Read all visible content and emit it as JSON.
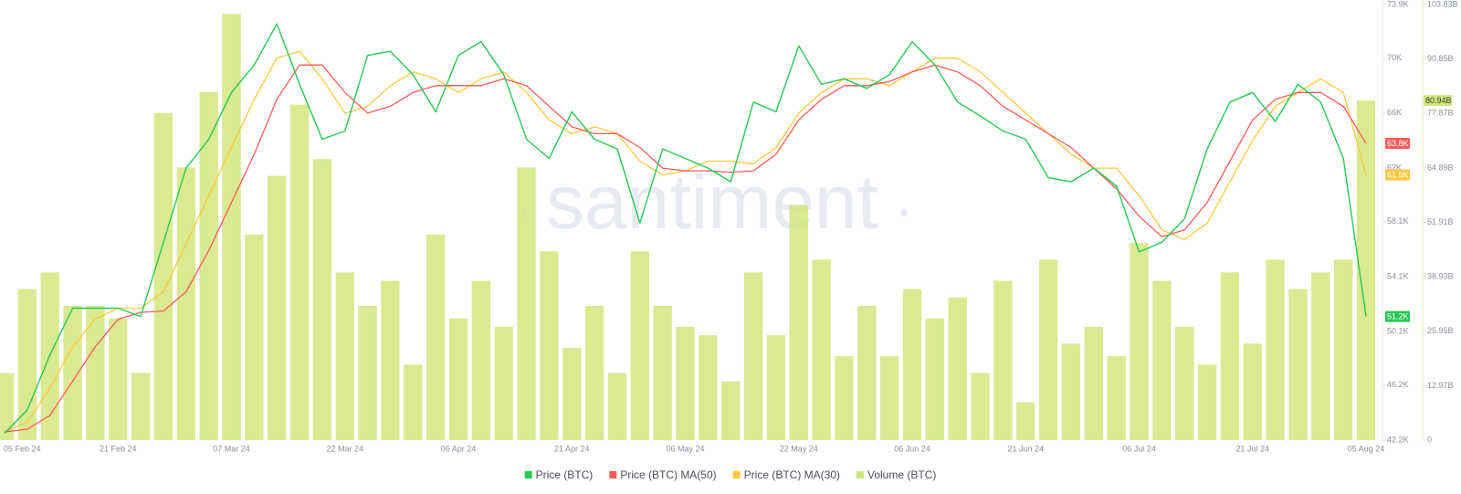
{
  "chart_data": {
    "type": "line",
    "watermark": "santiment",
    "categories": [
      "05 Feb 24",
      null,
      null,
      null,
      null,
      "21 Feb 24",
      null,
      null,
      null,
      null,
      "07 Mar 24",
      null,
      null,
      null,
      null,
      "22 Mar 24",
      null,
      null,
      null,
      null,
      "06 Apr 24",
      null,
      null,
      null,
      null,
      "21 Apr 24",
      null,
      null,
      null,
      null,
      "06 May 24",
      null,
      null,
      null,
      null,
      "22 May 24",
      null,
      null,
      null,
      null,
      "06 Jun 24",
      null,
      null,
      null,
      null,
      "21 Jun 24",
      null,
      null,
      null,
      null,
      "06 Jul 24",
      null,
      null,
      null,
      null,
      "21 Jul 24",
      null,
      null,
      null,
      null,
      "05 Aug 24"
    ],
    "series": [
      {
        "name": "Price (BTC)",
        "type": "line",
        "color": "#26c953",
        "last_label": "51.2K",
        "values": [
          42.7,
          44.4,
          48.4,
          51.8,
          51.8,
          51.8,
          51.2,
          56.6,
          62.0,
          64.1,
          67.5,
          69.5,
          72.5,
          68.1,
          64.1,
          64.7,
          70.2,
          70.5,
          68.8,
          66.1,
          70.2,
          71.2,
          68.8,
          64.1,
          62.7,
          66.1,
          64.1,
          63.4,
          58.0,
          63.4,
          62.7,
          62.0,
          61.0,
          66.8,
          66.1,
          70.9,
          68.1,
          68.5,
          67.8,
          68.8,
          71.2,
          69.5,
          66.8,
          65.8,
          64.7,
          64.1,
          61.3,
          61.0,
          62.0,
          60.7,
          55.9,
          56.6,
          58.3,
          63.4,
          66.8,
          67.5,
          65.4,
          68.1,
          66.8,
          62.7,
          51.2
        ]
      },
      {
        "name": "Price (BTC) MA(50)",
        "type": "line",
        "color": "#ff5b5b",
        "last_label": "63.8K",
        "values": [
          42.8,
          43,
          44,
          46.5,
          49,
          51,
          51.5,
          51.6,
          53,
          56,
          59.5,
          63,
          67,
          69.5,
          69.5,
          67.5,
          66,
          66.5,
          67.5,
          68,
          68,
          68,
          68.5,
          68,
          66.5,
          65,
          64.5,
          64.5,
          63.5,
          62,
          61.8,
          61.8,
          61.7,
          61.8,
          63,
          65.5,
          67,
          68,
          68,
          68.3,
          69,
          69.5,
          69,
          68,
          66.5,
          65.5,
          64.5,
          63.5,
          62,
          60.5,
          58.5,
          57,
          57.5,
          59.5,
          62.5,
          65.5,
          67,
          67.5,
          67.5,
          66.5,
          63.8
        ]
      },
      {
        "name": "Price (BTC) MA(30)",
        "type": "line",
        "color": "#ffc83d",
        "last_label": "61.5K",
        "values": [
          42.8,
          43.5,
          46,
          49,
          51,
          51.8,
          51.8,
          53,
          56.5,
          60,
          63.5,
          67,
          70,
          70.5,
          68.5,
          66,
          66.5,
          68,
          69,
          68.5,
          67.5,
          68.5,
          69,
          67.5,
          65.5,
          64.5,
          65,
          64.5,
          62.5,
          61.5,
          61.8,
          62.5,
          62.5,
          62.3,
          63.5,
          66,
          67.5,
          68.5,
          68.5,
          68,
          69,
          70,
          70,
          69,
          67.5,
          66,
          64.5,
          63,
          62,
          62,
          60,
          57.5,
          56.8,
          58,
          61,
          64,
          66.5,
          67.5,
          68.5,
          67.5,
          61.5
        ]
      },
      {
        "name": "Volume (BTC)",
        "type": "bar",
        "axis": "y2",
        "color": "#d2e67e",
        "last_label": "80.94B",
        "values": [
          16,
          36,
          40,
          32,
          32,
          29,
          16,
          78,
          65,
          83,
          101.6,
          49,
          63,
          80,
          67,
          40,
          32,
          38,
          18,
          49,
          29,
          38,
          27,
          65,
          45,
          22,
          32,
          16,
          45,
          32,
          27,
          25,
          14,
          40,
          25,
          56,
          43,
          20,
          32,
          20,
          36,
          29,
          34,
          16,
          38,
          9,
          43,
          23,
          27,
          20,
          47,
          38,
          27,
          18,
          40,
          23,
          43,
          36,
          40,
          43,
          80.94
        ]
      }
    ],
    "ylim": [
      42.2,
      73.9
    ],
    "yticks": [
      {
        "value": 42.2,
        "label": "42.2K"
      },
      {
        "value": 46.2,
        "label": "46.2K"
      },
      {
        "value": 50.1,
        "label": "50.1K"
      },
      {
        "value": 54.1,
        "label": "54.1K"
      },
      {
        "value": 58.1,
        "label": "58.1K"
      },
      {
        "value": 62,
        "label": "62K"
      },
      {
        "value": 66,
        "label": "66K"
      },
      {
        "value": 70,
        "label": "70K"
      },
      {
        "value": 73.9,
        "label": "73.9K"
      }
    ],
    "y2lim": [
      0,
      103.83
    ],
    "y2ticks": [
      0,
      {
        "value": 12.97,
        "label": "12.97B"
      },
      {
        "value": 25.95,
        "label": "25.95B"
      },
      {
        "value": 38.93,
        "label": "38.93B"
      },
      {
        "value": 51.91,
        "label": "51.91B"
      },
      {
        "value": 64.89,
        "label": "64.89B"
      },
      {
        "value": 77.87,
        "label": "77.87B"
      },
      {
        "value": 90.85,
        "label": "90.85B"
      },
      {
        "value": 103.83,
        "label": "103.83B"
      }
    ],
    "grid": false,
    "legend": "bottom"
  }
}
